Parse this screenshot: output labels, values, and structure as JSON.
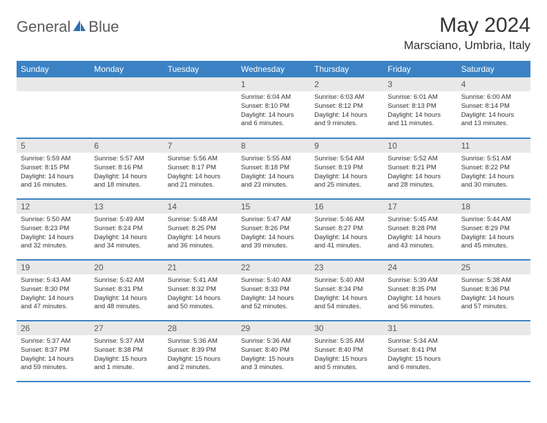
{
  "logo": {
    "brand_left": "General",
    "brand_right": "Blue",
    "icon_color": "#2e6fb0"
  },
  "header": {
    "title": "May 2024",
    "location": "Marsciano, Umbria, Italy"
  },
  "colors": {
    "header_bar": "#3b82c4",
    "header_text": "#ffffff",
    "cell_num_bg": "#e8e8e8",
    "cell_num_text": "#555555",
    "rule": "#3b82c4",
    "body_text": "#333333"
  },
  "day_names": [
    "Sunday",
    "Monday",
    "Tuesday",
    "Wednesday",
    "Thursday",
    "Friday",
    "Saturday"
  ],
  "weeks": [
    [
      null,
      null,
      null,
      {
        "n": "1",
        "sunrise": "Sunrise: 6:04 AM",
        "sunset": "Sunset: 8:10 PM",
        "daylight": "Daylight: 14 hours and 6 minutes."
      },
      {
        "n": "2",
        "sunrise": "Sunrise: 6:03 AM",
        "sunset": "Sunset: 8:12 PM",
        "daylight": "Daylight: 14 hours and 9 minutes."
      },
      {
        "n": "3",
        "sunrise": "Sunrise: 6:01 AM",
        "sunset": "Sunset: 8:13 PM",
        "daylight": "Daylight: 14 hours and 11 minutes."
      },
      {
        "n": "4",
        "sunrise": "Sunrise: 6:00 AM",
        "sunset": "Sunset: 8:14 PM",
        "daylight": "Daylight: 14 hours and 13 minutes."
      }
    ],
    [
      {
        "n": "5",
        "sunrise": "Sunrise: 5:59 AM",
        "sunset": "Sunset: 8:15 PM",
        "daylight": "Daylight: 14 hours and 16 minutes."
      },
      {
        "n": "6",
        "sunrise": "Sunrise: 5:57 AM",
        "sunset": "Sunset: 8:16 PM",
        "daylight": "Daylight: 14 hours and 18 minutes."
      },
      {
        "n": "7",
        "sunrise": "Sunrise: 5:56 AM",
        "sunset": "Sunset: 8:17 PM",
        "daylight": "Daylight: 14 hours and 21 minutes."
      },
      {
        "n": "8",
        "sunrise": "Sunrise: 5:55 AM",
        "sunset": "Sunset: 8:18 PM",
        "daylight": "Daylight: 14 hours and 23 minutes."
      },
      {
        "n": "9",
        "sunrise": "Sunrise: 5:54 AM",
        "sunset": "Sunset: 8:19 PM",
        "daylight": "Daylight: 14 hours and 25 minutes."
      },
      {
        "n": "10",
        "sunrise": "Sunrise: 5:52 AM",
        "sunset": "Sunset: 8:21 PM",
        "daylight": "Daylight: 14 hours and 28 minutes."
      },
      {
        "n": "11",
        "sunrise": "Sunrise: 5:51 AM",
        "sunset": "Sunset: 8:22 PM",
        "daylight": "Daylight: 14 hours and 30 minutes."
      }
    ],
    [
      {
        "n": "12",
        "sunrise": "Sunrise: 5:50 AM",
        "sunset": "Sunset: 8:23 PM",
        "daylight": "Daylight: 14 hours and 32 minutes."
      },
      {
        "n": "13",
        "sunrise": "Sunrise: 5:49 AM",
        "sunset": "Sunset: 8:24 PM",
        "daylight": "Daylight: 14 hours and 34 minutes."
      },
      {
        "n": "14",
        "sunrise": "Sunrise: 5:48 AM",
        "sunset": "Sunset: 8:25 PM",
        "daylight": "Daylight: 14 hours and 36 minutes."
      },
      {
        "n": "15",
        "sunrise": "Sunrise: 5:47 AM",
        "sunset": "Sunset: 8:26 PM",
        "daylight": "Daylight: 14 hours and 39 minutes."
      },
      {
        "n": "16",
        "sunrise": "Sunrise: 5:46 AM",
        "sunset": "Sunset: 8:27 PM",
        "daylight": "Daylight: 14 hours and 41 minutes."
      },
      {
        "n": "17",
        "sunrise": "Sunrise: 5:45 AM",
        "sunset": "Sunset: 8:28 PM",
        "daylight": "Daylight: 14 hours and 43 minutes."
      },
      {
        "n": "18",
        "sunrise": "Sunrise: 5:44 AM",
        "sunset": "Sunset: 8:29 PM",
        "daylight": "Daylight: 14 hours and 45 minutes."
      }
    ],
    [
      {
        "n": "19",
        "sunrise": "Sunrise: 5:43 AM",
        "sunset": "Sunset: 8:30 PM",
        "daylight": "Daylight: 14 hours and 47 minutes."
      },
      {
        "n": "20",
        "sunrise": "Sunrise: 5:42 AM",
        "sunset": "Sunset: 8:31 PM",
        "daylight": "Daylight: 14 hours and 48 minutes."
      },
      {
        "n": "21",
        "sunrise": "Sunrise: 5:41 AM",
        "sunset": "Sunset: 8:32 PM",
        "daylight": "Daylight: 14 hours and 50 minutes."
      },
      {
        "n": "22",
        "sunrise": "Sunrise: 5:40 AM",
        "sunset": "Sunset: 8:33 PM",
        "daylight": "Daylight: 14 hours and 52 minutes."
      },
      {
        "n": "23",
        "sunrise": "Sunrise: 5:40 AM",
        "sunset": "Sunset: 8:34 PM",
        "daylight": "Daylight: 14 hours and 54 minutes."
      },
      {
        "n": "24",
        "sunrise": "Sunrise: 5:39 AM",
        "sunset": "Sunset: 8:35 PM",
        "daylight": "Daylight: 14 hours and 56 minutes."
      },
      {
        "n": "25",
        "sunrise": "Sunrise: 5:38 AM",
        "sunset": "Sunset: 8:36 PM",
        "daylight": "Daylight: 14 hours and 57 minutes."
      }
    ],
    [
      {
        "n": "26",
        "sunrise": "Sunrise: 5:37 AM",
        "sunset": "Sunset: 8:37 PM",
        "daylight": "Daylight: 14 hours and 59 minutes."
      },
      {
        "n": "27",
        "sunrise": "Sunrise: 5:37 AM",
        "sunset": "Sunset: 8:38 PM",
        "daylight": "Daylight: 15 hours and 1 minute."
      },
      {
        "n": "28",
        "sunrise": "Sunrise: 5:36 AM",
        "sunset": "Sunset: 8:39 PM",
        "daylight": "Daylight: 15 hours and 2 minutes."
      },
      {
        "n": "29",
        "sunrise": "Sunrise: 5:36 AM",
        "sunset": "Sunset: 8:40 PM",
        "daylight": "Daylight: 15 hours and 3 minutes."
      },
      {
        "n": "30",
        "sunrise": "Sunrise: 5:35 AM",
        "sunset": "Sunset: 8:40 PM",
        "daylight": "Daylight: 15 hours and 5 minutes."
      },
      {
        "n": "31",
        "sunrise": "Sunrise: 5:34 AM",
        "sunset": "Sunset: 8:41 PM",
        "daylight": "Daylight: 15 hours and 6 minutes."
      },
      null
    ]
  ]
}
